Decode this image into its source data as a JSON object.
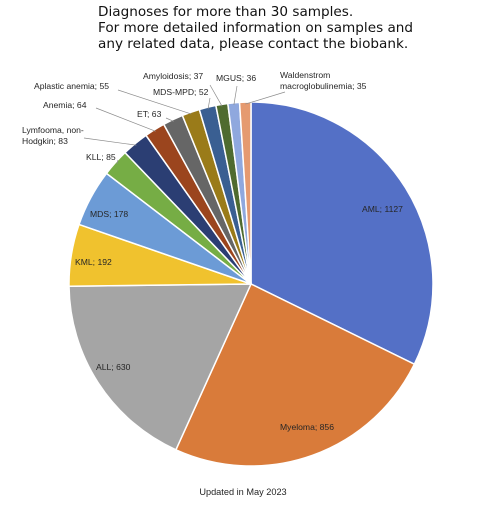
{
  "title_lines": [
    "Diagnoses for more than 30 samples.",
    "For more detailed information on samples and",
    "any related data, please contact the biobank."
  ],
  "footer": "Updated in May 2023",
  "chart_data": {
    "type": "pie",
    "title": "Diagnoses for more than 30 samples.",
    "start": "12 o'clock, clockwise",
    "slices": [
      {
        "label": "AML",
        "value": 1127,
        "color": "#5470c6",
        "label_text": "AML; 1127"
      },
      {
        "label": "Myeloma",
        "value": 856,
        "color": "#d97b3a",
        "label_text": "Myeloma; 856"
      },
      {
        "label": "ALL",
        "value": 630,
        "color": "#a5a5a5",
        "label_text": "ALL; 630"
      },
      {
        "label": "KML",
        "value": 192,
        "color": "#f0c22e",
        "label_text": "KML; 192"
      },
      {
        "label": "MDS",
        "value": 178,
        "color": "#6c9bd6",
        "label_text": "MDS; 178"
      },
      {
        "label": "KLL",
        "value": 85,
        "color": "#76ad45",
        "label_text": "KLL; 85"
      },
      {
        "label": "Lymfooma, non-Hodgkin",
        "value": 83,
        "color": "#2b3e73",
        "label_lines": [
          "Lymfooma, non-",
          "Hodgkin; 83"
        ]
      },
      {
        "label": "Anemia",
        "value": 64,
        "color": "#9b451e",
        "label_text": "Anemia; 64"
      },
      {
        "label": "ET",
        "value": 63,
        "color": "#666666",
        "label_text": "ET; 63"
      },
      {
        "label": "Aplastic anemia",
        "value": 55,
        "color": "#9a7b19",
        "label_text": "Aplastic anemia; 55"
      },
      {
        "label": "MDS-MPD",
        "value": 52,
        "color": "#3a5f92",
        "label_text": "MDS-MPD; 52"
      },
      {
        "label": "Amyloidosis",
        "value": 37,
        "color": "#4f6b2f",
        "label_text": "Amyloidosis; 37"
      },
      {
        "label": "MGUS",
        "value": 36,
        "color": "#8fa8de",
        "label_text": "MGUS; 36"
      },
      {
        "label": "Waldenstrom macroglobulinemia",
        "value": 35,
        "color": "#e59a70",
        "label_lines": [
          "Waldenstrom",
          "macroglobulinemia; 35"
        ]
      }
    ]
  }
}
